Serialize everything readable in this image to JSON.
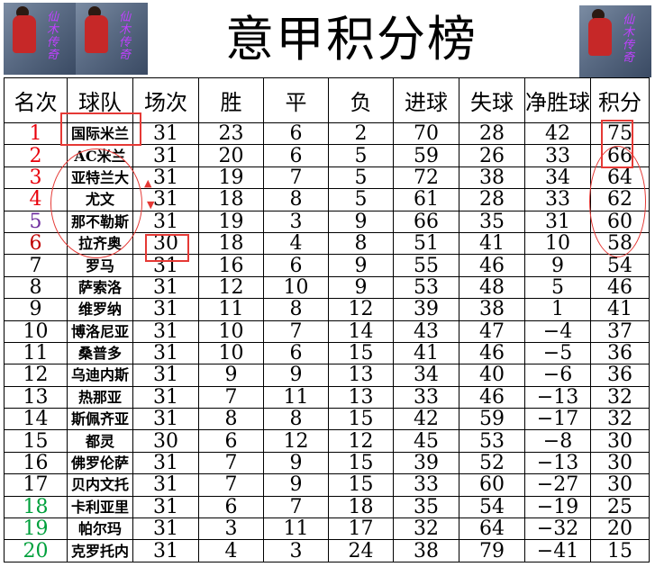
{
  "title": "意甲积分榜",
  "logo_text": "仙木传奇",
  "columns": [
    "名次",
    "球队",
    "场次",
    "胜",
    "平",
    "负",
    "进球",
    "失球",
    "净胜球",
    "积分"
  ],
  "rank_colors": {
    "top4": "#e8000b",
    "europa": "#7030a0",
    "conference": "#c00000",
    "normal": "#000000",
    "relegation": "#00a03c"
  },
  "annotation_color": "#e53935",
  "rows": [
    {
      "rank": "1",
      "team": "国际米兰",
      "played": "31",
      "w": "23",
      "d": "6",
      "l": "2",
      "gf": "70",
      "ga": "28",
      "gd": "42",
      "pts": "75",
      "color": "#e8000b"
    },
    {
      "rank": "2",
      "team": "AC米兰",
      "played": "31",
      "w": "20",
      "d": "6",
      "l": "5",
      "gf": "59",
      "ga": "26",
      "gd": "33",
      "pts": "66",
      "color": "#e8000b"
    },
    {
      "rank": "3",
      "team": "亚特兰大",
      "played": "31",
      "w": "19",
      "d": "7",
      "l": "5",
      "gf": "72",
      "ga": "38",
      "gd": "34",
      "pts": "64",
      "color": "#e8000b"
    },
    {
      "rank": "4",
      "team": "尤文",
      "played": "31",
      "w": "18",
      "d": "8",
      "l": "5",
      "gf": "61",
      "ga": "28",
      "gd": "33",
      "pts": "62",
      "color": "#e8000b"
    },
    {
      "rank": "5",
      "team": "那不勒斯",
      "played": "31",
      "w": "19",
      "d": "3",
      "l": "9",
      "gf": "66",
      "ga": "35",
      "gd": "31",
      "pts": "60",
      "color": "#7030a0"
    },
    {
      "rank": "6",
      "team": "拉齐奥",
      "played": "30",
      "w": "18",
      "d": "4",
      "l": "8",
      "gf": "51",
      "ga": "41",
      "gd": "10",
      "pts": "58",
      "color": "#c00000"
    },
    {
      "rank": "7",
      "team": "罗马",
      "played": "31",
      "w": "16",
      "d": "6",
      "l": "9",
      "gf": "55",
      "ga": "46",
      "gd": "9",
      "pts": "54",
      "color": "#000000"
    },
    {
      "rank": "8",
      "team": "萨索洛",
      "played": "31",
      "w": "12",
      "d": "10",
      "l": "9",
      "gf": "53",
      "ga": "48",
      "gd": "5",
      "pts": "46",
      "color": "#000000"
    },
    {
      "rank": "9",
      "team": "维罗纳",
      "played": "31",
      "w": "11",
      "d": "8",
      "l": "12",
      "gf": "39",
      "ga": "38",
      "gd": "1",
      "pts": "41",
      "color": "#000000"
    },
    {
      "rank": "10",
      "team": "博洛尼亚",
      "played": "31",
      "w": "10",
      "d": "7",
      "l": "14",
      "gf": "43",
      "ga": "47",
      "gd": "−4",
      "pts": "37",
      "color": "#000000"
    },
    {
      "rank": "11",
      "team": "桑普多",
      "played": "31",
      "w": "10",
      "d": "6",
      "l": "15",
      "gf": "41",
      "ga": "46",
      "gd": "−5",
      "pts": "36",
      "color": "#000000"
    },
    {
      "rank": "12",
      "team": "乌迪内斯",
      "played": "31",
      "w": "9",
      "d": "9",
      "l": "13",
      "gf": "34",
      "ga": "40",
      "gd": "−6",
      "pts": "36",
      "color": "#000000"
    },
    {
      "rank": "13",
      "team": "热那亚",
      "played": "31",
      "w": "7",
      "d": "11",
      "l": "13",
      "gf": "33",
      "ga": "46",
      "gd": "−13",
      "pts": "32",
      "color": "#000000"
    },
    {
      "rank": "14",
      "team": "斯佩齐亚",
      "played": "31",
      "w": "8",
      "d": "8",
      "l": "15",
      "gf": "42",
      "ga": "59",
      "gd": "−17",
      "pts": "32",
      "color": "#000000"
    },
    {
      "rank": "15",
      "team": "都灵",
      "played": "30",
      "w": "6",
      "d": "12",
      "l": "12",
      "gf": "45",
      "ga": "53",
      "gd": "−8",
      "pts": "30",
      "color": "#000000"
    },
    {
      "rank": "16",
      "team": "佛罗伦萨",
      "played": "31",
      "w": "7",
      "d": "9",
      "l": "15",
      "gf": "39",
      "ga": "52",
      "gd": "−13",
      "pts": "30",
      "color": "#000000"
    },
    {
      "rank": "17",
      "team": "贝内文托",
      "played": "31",
      "w": "7",
      "d": "9",
      "l": "15",
      "gf": "33",
      "ga": "60",
      "gd": "−27",
      "pts": "30",
      "color": "#000000"
    },
    {
      "rank": "18",
      "team": "卡利亚里",
      "played": "31",
      "w": "6",
      "d": "7",
      "l": "18",
      "gf": "35",
      "ga": "54",
      "gd": "−19",
      "pts": "25",
      "color": "#00a03c"
    },
    {
      "rank": "19",
      "team": "帕尔玛",
      "played": "31",
      "w": "3",
      "d": "11",
      "l": "17",
      "gf": "32",
      "ga": "64",
      "gd": "−32",
      "pts": "20",
      "color": "#00a03c"
    },
    {
      "rank": "20",
      "team": "克罗托内",
      "played": "31",
      "w": "4",
      "d": "3",
      "l": "24",
      "gf": "38",
      "ga": "79",
      "gd": "−41",
      "pts": "15",
      "color": "#00a03c"
    }
  ]
}
